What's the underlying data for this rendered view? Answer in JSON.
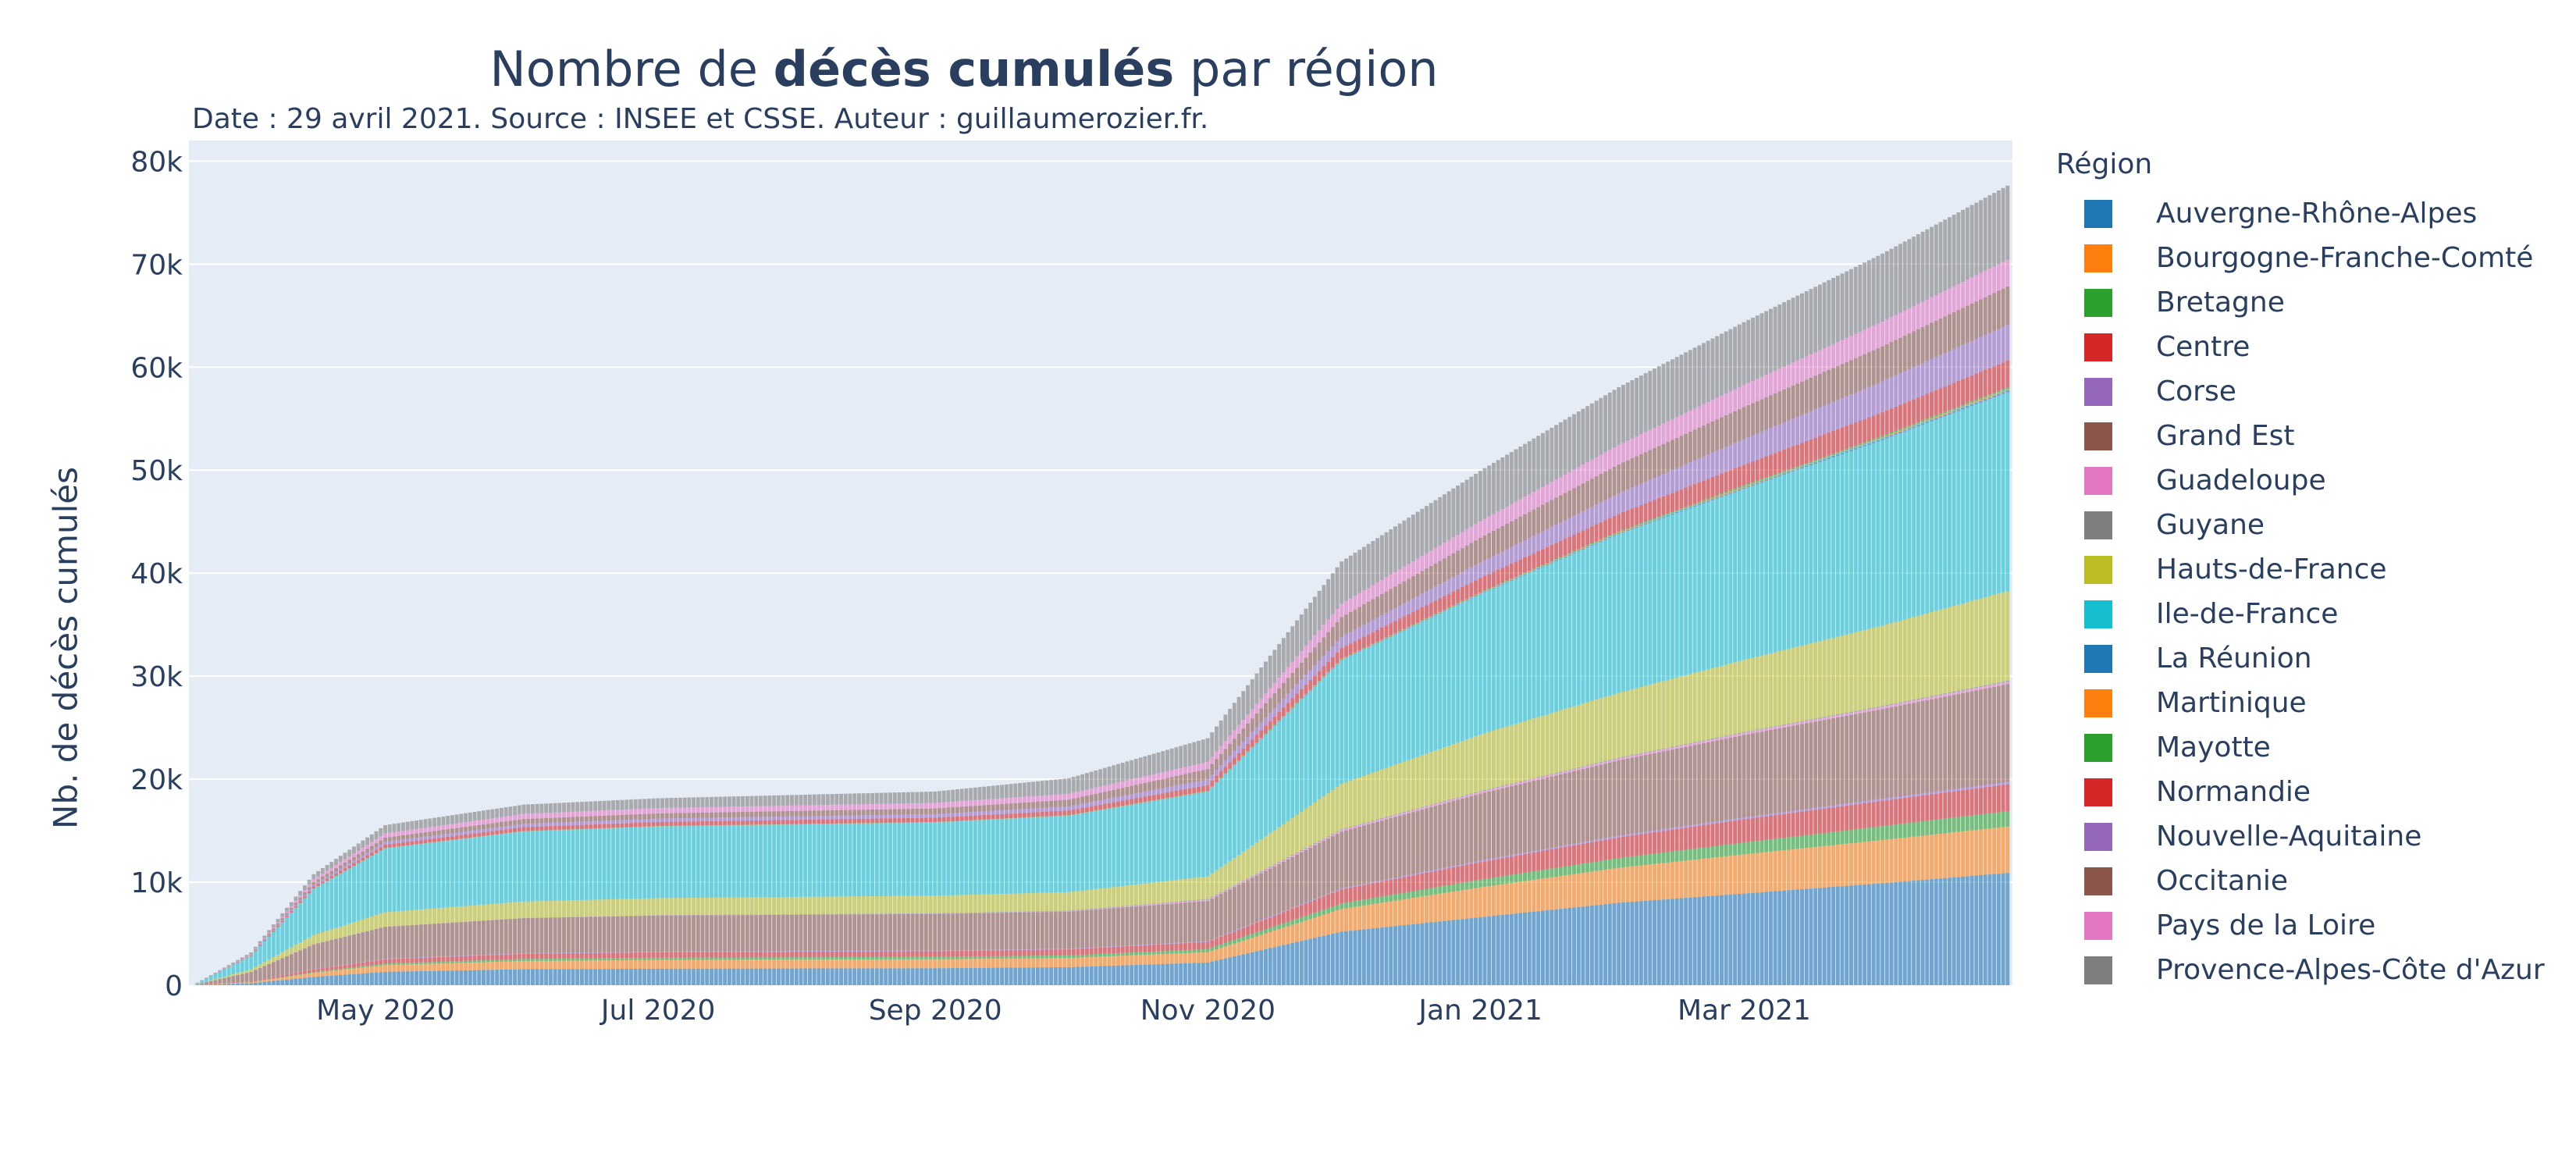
{
  "chart_data": {
    "type": "bar",
    "stacked": true,
    "title_prefix": "Nombre de ",
    "title_bold": "décès cumulés",
    "title_suffix": " par région",
    "subtitle": "Date : 29 avril 2021. Source : INSEE et CSSE. Auteur : guillaumerozier.fr.",
    "xlabel": "",
    "ylabel": "Nb. de décès cumulés",
    "legend_title": "Région",
    "legend_position": "right",
    "grid": true,
    "background": "#e5ecf6",
    "x_start": "2020-03-19",
    "x_end": "2021-04-29",
    "xlim": [
      "2020-03-18",
      "2021-04-30"
    ],
    "x_ticks": [
      {
        "date": "2020-05-01",
        "label": "May 2020"
      },
      {
        "date": "2020-07-01",
        "label": "Jul 2020"
      },
      {
        "date": "2020-09-01",
        "label": "Sep 2020"
      },
      {
        "date": "2020-11-01",
        "label": "Nov 2020"
      },
      {
        "date": "2021-01-01",
        "label": "Jan 2021"
      },
      {
        "date": "2021-03-01",
        "label": "Mar 2021"
      }
    ],
    "ylim": [
      0,
      82000
    ],
    "y_ticks": [
      {
        "value": 0,
        "label": "0"
      },
      {
        "value": 10000,
        "label": "10k"
      },
      {
        "value": 20000,
        "label": "20k"
      },
      {
        "value": 30000,
        "label": "30k"
      },
      {
        "value": 40000,
        "label": "40k"
      },
      {
        "value": 50000,
        "label": "50k"
      },
      {
        "value": 60000,
        "label": "60k"
      },
      {
        "value": 70000,
        "label": "70k"
      },
      {
        "value": 80000,
        "label": "80k"
      }
    ],
    "x_anchors": [
      "2020-03-19",
      "2020-04-01",
      "2020-04-15",
      "2020-05-01",
      "2020-06-01",
      "2020-07-01",
      "2020-09-01",
      "2020-10-01",
      "2020-11-01",
      "2020-12-01",
      "2021-01-01",
      "2021-02-01",
      "2021-03-01",
      "2021-04-01",
      "2021-04-29"
    ],
    "series": [
      {
        "name": "Auvergne-Rhône-Alpes",
        "color": "#1f77b4",
        "values": [
          0,
          200,
          800,
          1300,
          1550,
          1600,
          1650,
          1750,
          2200,
          5200,
          6600,
          8000,
          8900,
          9900,
          10900
        ]
      },
      {
        "name": "Bourgogne-Franche-Comté",
        "color": "#ff7f0e",
        "values": [
          0,
          100,
          400,
          650,
          800,
          850,
          870,
          900,
          1000,
          2200,
          2900,
          3400,
          3800,
          4200,
          4500
        ]
      },
      {
        "name": "Bretagne",
        "color": "#2ca02c",
        "values": [
          0,
          20,
          80,
          150,
          200,
          220,
          230,
          250,
          300,
          550,
          750,
          950,
          1150,
          1350,
          1500
        ]
      },
      {
        "name": "Centre",
        "color": "#d62728",
        "values": [
          0,
          60,
          250,
          420,
          500,
          530,
          550,
          580,
          700,
          1350,
          1700,
          2000,
          2250,
          2450,
          2600
        ]
      },
      {
        "name": "Corse",
        "color": "#9467bd",
        "values": [
          0,
          10,
          30,
          50,
          60,
          60,
          62,
          65,
          75,
          110,
          140,
          170,
          190,
          210,
          225
        ]
      },
      {
        "name": "Grand Est",
        "color": "#8c564b",
        "values": [
          0,
          900,
          2400,
          3100,
          3400,
          3500,
          3550,
          3600,
          3900,
          5500,
          6500,
          7300,
          8000,
          8700,
          9500
        ]
      },
      {
        "name": "Guadeloupe",
        "color": "#e377c2",
        "values": [
          0,
          3,
          10,
          14,
          15,
          16,
          18,
          30,
          120,
          160,
          175,
          185,
          200,
          215,
          230
        ]
      },
      {
        "name": "Guyane",
        "color": "#7f7f7f",
        "values": [
          0,
          0,
          1,
          1,
          2,
          30,
          60,
          65,
          70,
          72,
          75,
          80,
          85,
          90,
          100
        ]
      },
      {
        "name": "Hauts-de-France",
        "color": "#bcbd22",
        "values": [
          0,
          250,
          900,
          1400,
          1600,
          1650,
          1700,
          1800,
          2200,
          4400,
          5500,
          6300,
          7000,
          7800,
          8700
        ]
      },
      {
        "name": "Ile-de-France",
        "color": "#17becf",
        "values": [
          0,
          1300,
          4500,
          6200,
          6800,
          6950,
          7100,
          7400,
          8200,
          12000,
          13600,
          15400,
          16600,
          18000,
          19300
        ]
      },
      {
        "name": "La Réunion",
        "color": "#1f77b4",
        "values": [
          0,
          0,
          0,
          0,
          1,
          1,
          5,
          20,
          40,
          60,
          80,
          100,
          130,
          160,
          190
        ]
      },
      {
        "name": "Martinique",
        "color": "#ff7f0e",
        "values": [
          0,
          3,
          10,
          14,
          15,
          15,
          16,
          20,
          30,
          40,
          45,
          50,
          55,
          70,
          100
        ]
      },
      {
        "name": "Mayotte",
        "color": "#2ca02c",
        "values": [
          0,
          1,
          5,
          10,
          20,
          25,
          30,
          35,
          40,
          45,
          60,
          120,
          160,
          175,
          180
        ]
      },
      {
        "name": "Normandie",
        "color": "#d62728",
        "values": [
          0,
          50,
          200,
          330,
          380,
          400,
          420,
          450,
          550,
          1050,
          1400,
          1700,
          2000,
          2300,
          2600
        ]
      },
      {
        "name": "Nouvelle-Aquitaine",
        "color": "#9467bd",
        "values": [
          0,
          40,
          180,
          280,
          320,
          330,
          350,
          400,
          550,
          1100,
          1500,
          2000,
          2500,
          3000,
          3500
        ]
      },
      {
        "name": "Occitanie",
        "color": "#8c564b",
        "values": [
          0,
          50,
          250,
          400,
          470,
          500,
          550,
          650,
          1000,
          1900,
          2400,
          2800,
          3100,
          3400,
          3700
        ]
      },
      {
        "name": "Pays de la Loire",
        "color": "#e377c2",
        "values": [
          0,
          50,
          260,
          420,
          500,
          520,
          540,
          580,
          700,
          1300,
          1600,
          1900,
          2150,
          2400,
          2600
        ]
      },
      {
        "name": "Provence-Alpes-Côte d'Azur",
        "color": "#7f7f7f",
        "values": [
          0,
          150,
          500,
          800,
          900,
          950,
          1100,
          1500,
          2300,
          4100,
          4900,
          5600,
          6100,
          6600,
          7200
        ]
      }
    ]
  }
}
